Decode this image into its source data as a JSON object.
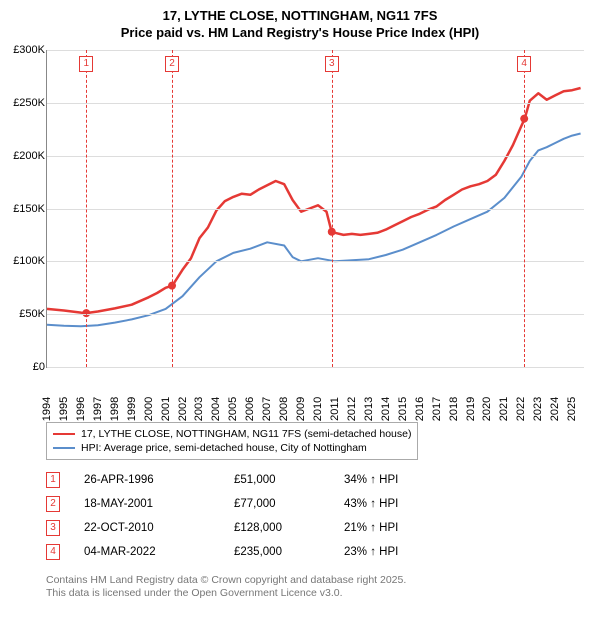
{
  "title_line1": "17, LYTHE CLOSE, NOTTINGHAM, NG11 7FS",
  "title_line2": "Price paid vs. HM Land Registry's House Price Index (HPI)",
  "chart": {
    "type": "line",
    "background_color": "#ffffff",
    "grid_color": "#dddddd",
    "axis_color": "#888888",
    "x_years": [
      1994,
      1995,
      1996,
      1997,
      1998,
      1999,
      2000,
      2001,
      2002,
      2003,
      2004,
      2005,
      2006,
      2007,
      2008,
      2009,
      2010,
      2011,
      2012,
      2013,
      2014,
      2015,
      2016,
      2017,
      2018,
      2019,
      2020,
      2021,
      2022,
      2023,
      2024,
      2025
    ],
    "xlim": [
      1994,
      2025.7
    ],
    "ylim": [
      0,
      300000
    ],
    "ytick_step": 50000,
    "y_ticks": [
      {
        "v": 0,
        "label": "£0"
      },
      {
        "v": 50000,
        "label": "£50K"
      },
      {
        "v": 100000,
        "label": "£100K"
      },
      {
        "v": 150000,
        "label": "£150K"
      },
      {
        "v": 200000,
        "label": "£200K"
      },
      {
        "v": 250000,
        "label": "£250K"
      },
      {
        "v": 300000,
        "label": "£300K"
      }
    ],
    "x_tick_fontsize": 11,
    "y_tick_fontsize": 11,
    "series": [
      {
        "name": "17, LYTHE CLOSE, NOTTINGHAM, NG11 7FS (semi-detached house)",
        "color": "#e53935",
        "line_width": 2.5,
        "data": [
          [
            1994.0,
            55000
          ],
          [
            1995.0,
            53500
          ],
          [
            1996.0,
            51500
          ],
          [
            1996.3,
            51000
          ],
          [
            1997.0,
            52500
          ],
          [
            1998.0,
            55500
          ],
          [
            1999.0,
            59000
          ],
          [
            2000.0,
            66000
          ],
          [
            2000.5,
            70000
          ],
          [
            2001.0,
            75000
          ],
          [
            2001.4,
            77000
          ],
          [
            2002.0,
            92000
          ],
          [
            2002.5,
            103000
          ],
          [
            2003.0,
            122000
          ],
          [
            2003.5,
            132000
          ],
          [
            2004.0,
            148000
          ],
          [
            2004.5,
            157000
          ],
          [
            2005.0,
            161000
          ],
          [
            2005.5,
            164000
          ],
          [
            2006.0,
            163000
          ],
          [
            2006.5,
            168000
          ],
          [
            2007.0,
            172000
          ],
          [
            2007.5,
            176000
          ],
          [
            2008.0,
            173000
          ],
          [
            2008.5,
            158000
          ],
          [
            2009.0,
            147000
          ],
          [
            2009.5,
            150000
          ],
          [
            2010.0,
            153000
          ],
          [
            2010.5,
            147000
          ],
          [
            2010.8,
            128000
          ],
          [
            2011.0,
            127000
          ],
          [
            2011.5,
            125000
          ],
          [
            2012.0,
            126000
          ],
          [
            2012.5,
            125000
          ],
          [
            2013.0,
            126000
          ],
          [
            2013.5,
            127000
          ],
          [
            2014.0,
            130000
          ],
          [
            2014.5,
            134000
          ],
          [
            2015.0,
            138000
          ],
          [
            2015.5,
            142000
          ],
          [
            2016.0,
            145000
          ],
          [
            2016.5,
            149000
          ],
          [
            2017.0,
            152000
          ],
          [
            2017.5,
            158000
          ],
          [
            2018.0,
            163000
          ],
          [
            2018.5,
            168000
          ],
          [
            2019.0,
            171000
          ],
          [
            2019.5,
            173000
          ],
          [
            2020.0,
            176000
          ],
          [
            2020.5,
            182000
          ],
          [
            2021.0,
            195000
          ],
          [
            2021.5,
            210000
          ],
          [
            2022.0,
            228000
          ],
          [
            2022.2,
            235000
          ],
          [
            2022.5,
            252000
          ],
          [
            2023.0,
            259000
          ],
          [
            2023.5,
            253000
          ],
          [
            2024.0,
            257000
          ],
          [
            2024.5,
            261000
          ],
          [
            2025.0,
            262000
          ],
          [
            2025.5,
            264000
          ]
        ]
      },
      {
        "name": "HPI: Average price, semi-detached house, City of Nottingham",
        "color": "#5b8ecb",
        "line_width": 2,
        "data": [
          [
            1994.0,
            40000
          ],
          [
            1995.0,
            39000
          ],
          [
            1996.0,
            38500
          ],
          [
            1997.0,
            39500
          ],
          [
            1998.0,
            42000
          ],
          [
            1999.0,
            45000
          ],
          [
            2000.0,
            49000
          ],
          [
            2001.0,
            55000
          ],
          [
            2002.0,
            67000
          ],
          [
            2003.0,
            85000
          ],
          [
            2004.0,
            100000
          ],
          [
            2005.0,
            108000
          ],
          [
            2006.0,
            112000
          ],
          [
            2007.0,
            118000
          ],
          [
            2008.0,
            115000
          ],
          [
            2008.5,
            104000
          ],
          [
            2009.0,
            100000
          ],
          [
            2010.0,
            103000
          ],
          [
            2011.0,
            100000
          ],
          [
            2012.0,
            101000
          ],
          [
            2013.0,
            102000
          ],
          [
            2014.0,
            106000
          ],
          [
            2015.0,
            111000
          ],
          [
            2016.0,
            118000
          ],
          [
            2017.0,
            125000
          ],
          [
            2018.0,
            133000
          ],
          [
            2019.0,
            140000
          ],
          [
            2020.0,
            147000
          ],
          [
            2021.0,
            160000
          ],
          [
            2022.0,
            180000
          ],
          [
            2022.5,
            195000
          ],
          [
            2023.0,
            205000
          ],
          [
            2023.5,
            208000
          ],
          [
            2024.0,
            212000
          ],
          [
            2024.5,
            216000
          ],
          [
            2025.0,
            219000
          ],
          [
            2025.5,
            221000
          ]
        ]
      }
    ],
    "sale_markers": [
      {
        "n": "1",
        "x": 1996.32,
        "y": 51000
      },
      {
        "n": "2",
        "x": 2001.38,
        "y": 77000
      },
      {
        "n": "3",
        "x": 2010.81,
        "y": 128000
      },
      {
        "n": "4",
        "x": 2022.17,
        "y": 235000
      }
    ],
    "marker_color": "#e53935",
    "marker_dash_color": "#e53935",
    "marker_point_radius": 4
  },
  "legend": {
    "items": [
      {
        "color": "#e53935",
        "label": "17, LYTHE CLOSE, NOTTINGHAM, NG11 7FS (semi-detached house)"
      },
      {
        "color": "#5b8ecb",
        "label": "HPI: Average price, semi-detached house, City of Nottingham"
      }
    ]
  },
  "marker_table": {
    "rows": [
      {
        "n": "1",
        "date": "26-APR-1996",
        "price": "£51,000",
        "pct": "34% ↑ HPI"
      },
      {
        "n": "2",
        "date": "18-MAY-2001",
        "price": "£77,000",
        "pct": "43% ↑ HPI"
      },
      {
        "n": "3",
        "date": "22-OCT-2010",
        "price": "£128,000",
        "pct": "21% ↑ HPI"
      },
      {
        "n": "4",
        "date": "04-MAR-2022",
        "price": "£235,000",
        "pct": "23% ↑ HPI"
      }
    ]
  },
  "footnote_line1": "Contains HM Land Registry data © Crown copyright and database right 2025.",
  "footnote_line2": "This data is licensed under the Open Government Licence v3.0."
}
